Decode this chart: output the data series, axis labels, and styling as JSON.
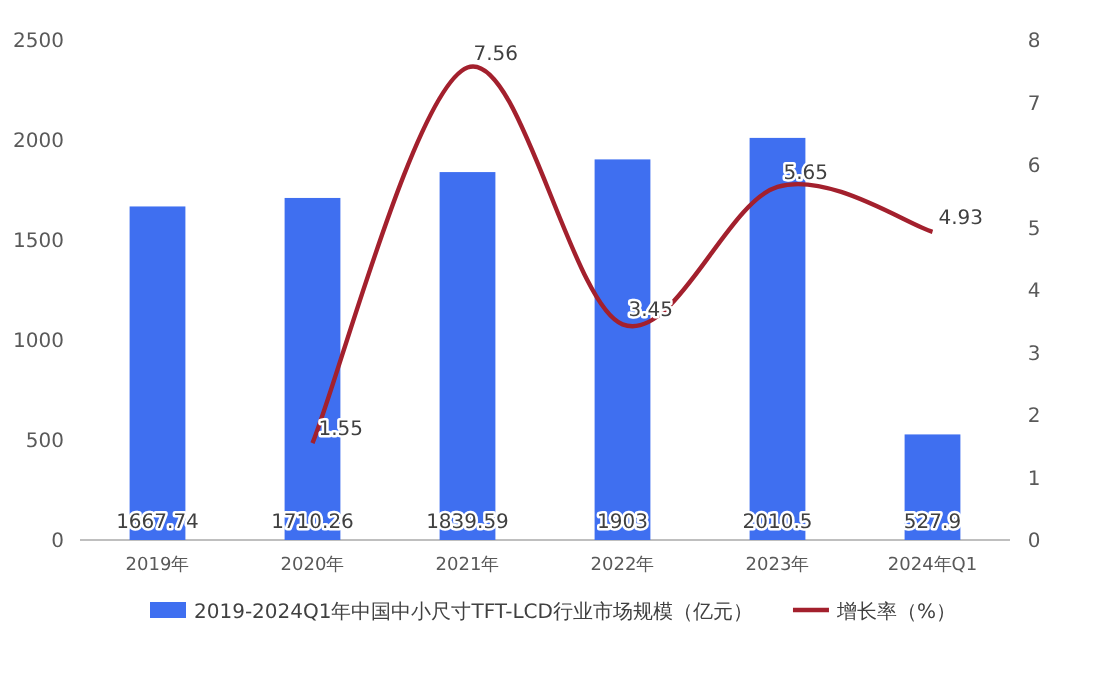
{
  "chart_data": {
    "type": "bar",
    "categories": [
      "2019年",
      "2020年",
      "2021年",
      "2022年",
      "2023年",
      "2024年Q1"
    ],
    "series": [
      {
        "name": "2019-2024Q1年中国中小尺寸TFT-LCD行业市场规模（亿元）",
        "color": "#3f6ff0",
        "values": [
          1667.74,
          1710.26,
          1839.59,
          1903,
          2010.5,
          527.9
        ]
      },
      {
        "name": "增长率（%）",
        "type": "line",
        "axis": "y2",
        "color": "#a3202d",
        "values": [
          null,
          1.55,
          7.56,
          3.45,
          5.65,
          4.93
        ]
      }
    ],
    "ylim": [
      0,
      2500
    ],
    "yticks": [
      0,
      500,
      1000,
      1500,
      2000,
      2500
    ],
    "y2lim": [
      0,
      8
    ],
    "y2ticks": [
      0,
      1,
      2,
      3,
      4,
      5,
      6,
      7,
      8
    ],
    "data_labels": true,
    "legend": "bottom",
    "grid": false,
    "marker": "none",
    "line_style": "solid"
  }
}
